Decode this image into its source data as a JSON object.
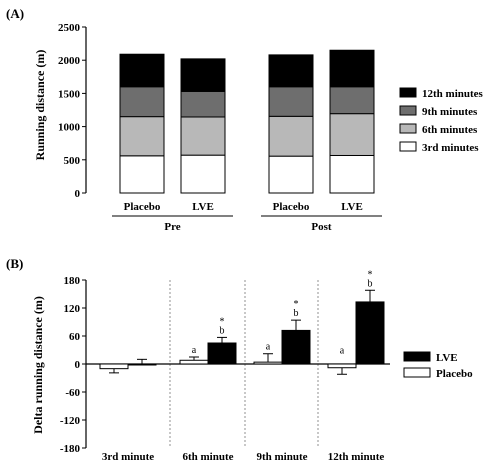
{
  "chart_data": [
    {
      "panel_label": "(A)",
      "type": "bar",
      "stacked": true,
      "ylabel": "Running distance (m)",
      "ylim": [
        0,
        2500
      ],
      "yticks": [
        0,
        500,
        1000,
        1500,
        2000,
        2500
      ],
      "categories": [
        "Placebo",
        "LVE",
        "Placebo",
        "LVE"
      ],
      "groups": [
        {
          "label": "Pre",
          "members": [
            0,
            1
          ]
        },
        {
          "label": "Post",
          "members": [
            2,
            3
          ]
        }
      ],
      "legend_position": "right",
      "series": [
        {
          "name": "3rd minutes",
          "color": "#ffffff",
          "values": [
            560,
            570,
            555,
            565
          ]
        },
        {
          "name": "6th minutes",
          "color": "#b8b8b8",
          "values": [
            590,
            575,
            600,
            630
          ]
        },
        {
          "name": "9th minutes",
          "color": "#6e6e6e",
          "values": [
            450,
            385,
            445,
            405
          ]
        },
        {
          "name": "12th minutes",
          "color": "#000000",
          "values": [
            490,
            490,
            480,
            550
          ]
        }
      ]
    },
    {
      "panel_label": "(B)",
      "type": "bar",
      "ylabel": "Delta running distance (m)",
      "ylim": [
        -180,
        180
      ],
      "yticks": [
        -180,
        -120,
        -60,
        0,
        60,
        120,
        180
      ],
      "categories": [
        "3rd minute",
        "6th minute",
        "9th minute",
        "12th minute"
      ],
      "legend_position": "right",
      "series": [
        {
          "name": "LVE",
          "color": "#000000",
          "values": [
            0,
            45,
            72,
            133
          ],
          "errors": [
            10,
            12,
            22,
            25
          ],
          "annotations": [
            "",
            "*\nb",
            "*\nb",
            "*\nb"
          ]
        },
        {
          "name": "Placebo",
          "color": "#ffffff",
          "values": [
            -10,
            8,
            4,
            -8
          ],
          "errors": [
            9,
            7,
            18,
            14
          ],
          "annotations": [
            "",
            "a",
            "a",
            "a"
          ]
        }
      ]
    }
  ]
}
